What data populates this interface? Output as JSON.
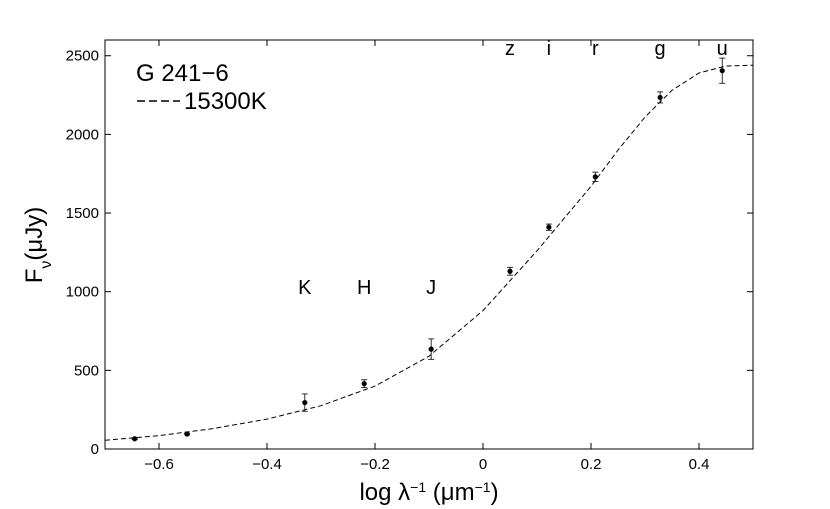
{
  "chart_data": {
    "type": "scatter",
    "xlabel": {
      "base": "log λ",
      "sup1": "−1",
      "mid": " (μm",
      "sup2": "−1",
      "end": ")"
    },
    "ylabel": {
      "base": "F",
      "sub": "ν",
      "rest": "(μJy)"
    },
    "xlim": [
      -0.7,
      0.5
    ],
    "ylim": [
      0,
      2600
    ],
    "x_ticks": [
      -0.6,
      -0.4,
      -0.2,
      0,
      0.2,
      0.4
    ],
    "x_tick_labels": [
      "−0.6",
      "−0.4",
      "−0.2",
      "0",
      "0.2",
      "0.4"
    ],
    "y_ticks": [
      0,
      500,
      1000,
      1500,
      2000,
      2500
    ],
    "y_tick_labels": [
      "0",
      "500",
      "1000",
      "1500",
      "2000",
      "2500"
    ],
    "grid": false,
    "legend": {
      "placement": "top-left",
      "title": "G 241−6",
      "model_label": "15300K"
    },
    "series": [
      {
        "name": "G 241−6",
        "x": [
          -0.645,
          -0.548,
          -0.33,
          -0.22,
          -0.096,
          0.05,
          0.122,
          0.208,
          0.328,
          0.443
        ],
        "y": [
          65,
          95,
          295,
          415,
          635,
          1130,
          1410,
          1730,
          2235,
          2405
        ],
        "yerr": [
          5,
          5,
          55,
          25,
          65,
          25,
          20,
          30,
          35,
          80
        ]
      },
      {
        "name": "15300K",
        "style": "dashed",
        "x": [
          -0.7,
          -0.6,
          -0.5,
          -0.4,
          -0.3,
          -0.2,
          -0.1,
          0.0,
          0.1,
          0.2,
          0.25,
          0.3,
          0.35,
          0.4,
          0.45,
          0.5
        ],
        "y": [
          55,
          85,
          130,
          190,
          275,
          400,
          590,
          880,
          1260,
          1670,
          1900,
          2110,
          2280,
          2390,
          2435,
          2440
        ]
      }
    ],
    "band_labels": [
      {
        "text": "K",
        "x": -0.33,
        "y": 985
      },
      {
        "text": "H",
        "x": -0.22,
        "y": 985
      },
      {
        "text": "J",
        "x": -0.096,
        "y": 985
      },
      {
        "text": "z",
        "x": 0.05,
        "y": 2505
      },
      {
        "text": "i",
        "x": 0.122,
        "y": 2505
      },
      {
        "text": "r",
        "x": 0.208,
        "y": 2505
      },
      {
        "text": "g",
        "x": 0.328,
        "y": 2505
      },
      {
        "text": "u",
        "x": 0.443,
        "y": 2505
      }
    ]
  }
}
